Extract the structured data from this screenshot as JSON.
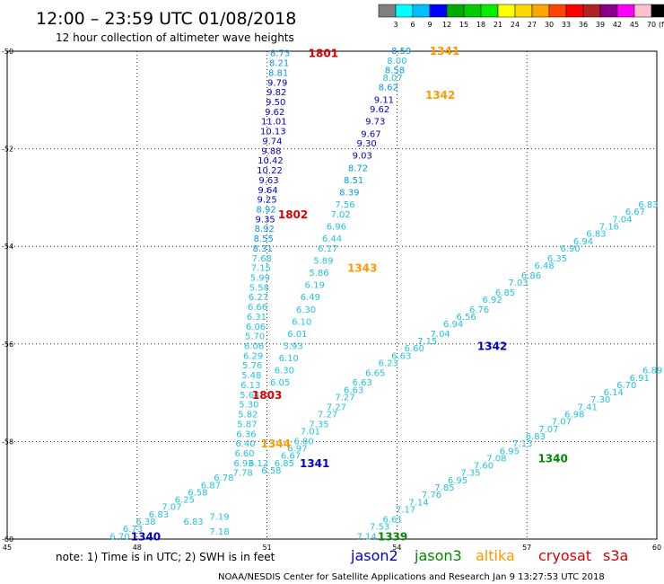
{
  "title": "12:00 – 23:59 UTC 01/08/2018",
  "subtitle": "12 hour collection of altimeter wave heights",
  "colorbar": {
    "labels": [
      "3",
      "6",
      "9",
      "12",
      "15",
      "18",
      "21",
      "24",
      "27",
      "30",
      "33",
      "36",
      "39",
      "42",
      "45",
      "70"
    ],
    "unit": "(ft)",
    "colors": [
      "#808080",
      "#00ffff",
      "#00bfff",
      "#0000ff",
      "#00aa00",
      "#00cc00",
      "#00ee00",
      "#ffff00",
      "#ffd700",
      "#ffa500",
      "#ff4500",
      "#ff0000",
      "#b22222",
      "#8b008b",
      "#ff00ff",
      "#ffc0cb",
      "#000000"
    ]
  },
  "note": "note:  1) Time is in UTC;  2) SWH is in feet",
  "satellites": [
    {
      "name": "jason2",
      "color": "#0000cc"
    },
    {
      "name": "jason3",
      "color": "#008800"
    },
    {
      "name": "altika",
      "color": "#ff9900"
    },
    {
      "name": "cryosat",
      "color": "#dd0000"
    },
    {
      "name": "s3a",
      "color": "#cc0000"
    }
  ],
  "footer": "NOAA/NESDIS Center for Satellite Applications and Research    Jan  9 13:27:53 UTC 2018",
  "chart_data": {
    "type": "scatter",
    "xlim": [
      45,
      60
    ],
    "ylim": [
      -60,
      -50
    ],
    "x_ticks": [
      45,
      48,
      51,
      54,
      57,
      60
    ],
    "y_ticks": [
      -50,
      -52,
      -54,
      -56,
      -58,
      -60
    ],
    "grid": true,
    "series": [
      {
        "name": "1801",
        "color": "#dd0000",
        "label_at": [
          52.3,
          -50.05
        ],
        "points": [
          {
            "x": 51.3,
            "y": -50.05,
            "v": "8.73"
          },
          {
            "x": 51.28,
            "y": -50.25,
            "v": "8.21"
          },
          {
            "x": 51.26,
            "y": -50.45,
            "v": "8.81"
          },
          {
            "x": 51.24,
            "y": -50.65,
            "v": "9.79"
          },
          {
            "x": 51.22,
            "y": -50.85,
            "v": "9.82"
          },
          {
            "x": 51.2,
            "y": -51.05,
            "v": "9.50"
          },
          {
            "x": 51.18,
            "y": -51.25,
            "v": "9.62"
          },
          {
            "x": 51.16,
            "y": -51.45,
            "v": "11.01"
          },
          {
            "x": 51.14,
            "y": -51.65,
            "v": "10.13"
          },
          {
            "x": 51.12,
            "y": -51.85,
            "v": "9.74"
          },
          {
            "x": 51.1,
            "y": -52.05,
            "v": "9.88"
          },
          {
            "x": 51.08,
            "y": -52.25,
            "v": "10.42"
          },
          {
            "x": 51.06,
            "y": -52.45,
            "v": "10.22"
          },
          {
            "x": 51.04,
            "y": -52.65,
            "v": "9.63"
          },
          {
            "x": 51.02,
            "y": -52.85,
            "v": "9.64"
          },
          {
            "x": 51.0,
            "y": -53.05,
            "v": "9.25"
          },
          {
            "x": 50.98,
            "y": -53.25,
            "v": "8.92"
          },
          {
            "x": 50.96,
            "y": -53.45,
            "v": "9.35"
          },
          {
            "x": 50.94,
            "y": -53.65,
            "v": "8.92"
          },
          {
            "x": 50.92,
            "y": -53.85,
            "v": "8.55"
          },
          {
            "x": 50.9,
            "y": -54.05,
            "v": "8.31"
          },
          {
            "x": 50.88,
            "y": -54.25,
            "v": "7.68"
          },
          {
            "x": 50.86,
            "y": -54.45,
            "v": "7.15"
          },
          {
            "x": 50.84,
            "y": -54.65,
            "v": "5.99"
          },
          {
            "x": 50.82,
            "y": -54.85,
            "v": "5.58"
          },
          {
            "x": 50.8,
            "y": -55.05,
            "v": "6.27"
          },
          {
            "x": 50.78,
            "y": -55.25,
            "v": "6.66"
          },
          {
            "x": 50.76,
            "y": -55.45,
            "v": "6.31"
          },
          {
            "x": 50.74,
            "y": -55.65,
            "v": "6.06"
          },
          {
            "x": 50.72,
            "y": -55.85,
            "v": "5.70"
          },
          {
            "x": 50.7,
            "y": -56.05,
            "v": "6.06"
          },
          {
            "x": 50.68,
            "y": -56.25,
            "v": "6.29"
          },
          {
            "x": 50.66,
            "y": -56.45,
            "v": "5.76"
          },
          {
            "x": 50.64,
            "y": -56.65,
            "v": "5.48"
          },
          {
            "x": 50.62,
            "y": -56.85,
            "v": "6.13"
          },
          {
            "x": 50.6,
            "y": -57.05,
            "v": "5.64"
          },
          {
            "x": 50.58,
            "y": -57.25,
            "v": "5.30"
          },
          {
            "x": 50.56,
            "y": -57.45,
            "v": "5.82"
          },
          {
            "x": 50.54,
            "y": -57.65,
            "v": "5.87"
          },
          {
            "x": 50.52,
            "y": -57.85,
            "v": "6.36"
          },
          {
            "x": 50.5,
            "y": -58.05,
            "v": "6.40"
          },
          {
            "x": 50.48,
            "y": -58.25,
            "v": "6.60"
          },
          {
            "x": 50.46,
            "y": -58.45,
            "v": "6.93"
          },
          {
            "x": 50.44,
            "y": -58.65,
            "v": "7.78"
          }
        ]
      },
      {
        "name": "1802",
        "color": "#dd0000",
        "label_at": [
          51.6,
          -53.35
        ],
        "points": [
          {
            "x": 53.9,
            "y": -50.55,
            "v": "8.07"
          },
          {
            "x": 53.8,
            "y": -50.75,
            "v": "8.62"
          },
          {
            "x": 53.7,
            "y": -51.0,
            "v": "9.11"
          },
          {
            "x": 53.6,
            "y": -51.2,
            "v": "9.62"
          },
          {
            "x": 53.5,
            "y": -51.45,
            "v": "9.73"
          },
          {
            "x": 53.4,
            "y": -51.7,
            "v": "9.67"
          },
          {
            "x": 53.3,
            "y": -51.9,
            "v": "9.30"
          },
          {
            "x": 53.2,
            "y": -52.15,
            "v": "9.03"
          },
          {
            "x": 53.1,
            "y": -52.4,
            "v": "8.72"
          },
          {
            "x": 53.0,
            "y": -52.65,
            "v": "8.51"
          },
          {
            "x": 52.9,
            "y": -52.9,
            "v": "8.39"
          },
          {
            "x": 52.8,
            "y": -53.15,
            "v": "7.56"
          },
          {
            "x": 52.7,
            "y": -53.35,
            "v": "7.02"
          },
          {
            "x": 52.6,
            "y": -53.6,
            "v": "6.96"
          },
          {
            "x": 52.5,
            "y": -53.85,
            "v": "6.44"
          },
          {
            "x": 52.4,
            "y": -54.05,
            "v": "6.17"
          },
          {
            "x": 52.3,
            "y": -54.3,
            "v": "5.89"
          },
          {
            "x": 52.2,
            "y": -54.55,
            "v": "5.86"
          },
          {
            "x": 52.1,
            "y": -54.8,
            "v": "6.19"
          },
          {
            "x": 52.0,
            "y": -55.05,
            "v": "6.49"
          },
          {
            "x": 51.9,
            "y": -55.3,
            "v": "6.30"
          },
          {
            "x": 51.8,
            "y": -55.55,
            "v": "6.10"
          },
          {
            "x": 51.7,
            "y": -55.8,
            "v": "6.01"
          },
          {
            "x": 51.6,
            "y": -56.05,
            "v": "5.93"
          },
          {
            "x": 51.5,
            "y": -56.3,
            "v": "6.10"
          },
          {
            "x": 51.4,
            "y": -56.55,
            "v": "6.30"
          },
          {
            "x": 51.3,
            "y": -56.8,
            "v": "6.05"
          }
        ]
      },
      {
        "name": "1803",
        "color": "#dd0000",
        "label_at": [
          51.0,
          -57.05
        ],
        "points": []
      },
      {
        "name": "1341",
        "color": "#ff9900",
        "label_at": [
          55.1,
          -50.0
        ],
        "points": [
          {
            "x": 54.1,
            "y": -50.0,
            "v": "8.59"
          },
          {
            "x": 54.0,
            "y": -50.2,
            "v": "8.00"
          },
          {
            "x": 53.95,
            "y": -50.4,
            "v": "8.58"
          }
        ]
      },
      {
        "name": "1342",
        "color": "#ff9900",
        "label_at": [
          55.0,
          -50.9
        ],
        "points": []
      },
      {
        "name": "1343",
        "color": "#ff9900",
        "label_at": [
          53.2,
          -54.45
        ],
        "points": []
      },
      {
        "name": "1344",
        "color": "#ff9900",
        "label_at": [
          51.2,
          -58.05
        ],
        "points": []
      },
      {
        "name": "1341",
        "color": "#0000cc",
        "label_at": [
          52.1,
          -58.45
        ],
        "points": [
          {
            "x": 51.4,
            "y": -58.45,
            "v": "6.85"
          },
          {
            "x": 51.55,
            "y": -58.3,
            "v": "6.67"
          },
          {
            "x": 51.7,
            "y": -58.15,
            "v": "6.97"
          },
          {
            "x": 51.85,
            "y": -58.0,
            "v": "6.80"
          },
          {
            "x": 52.0,
            "y": -57.8,
            "v": "7.01"
          },
          {
            "x": 52.2,
            "y": -57.65,
            "v": "7.35"
          },
          {
            "x": 52.4,
            "y": -57.45,
            "v": "7.27"
          },
          {
            "x": 52.6,
            "y": -57.3,
            "v": "7.27"
          },
          {
            "x": 52.8,
            "y": -57.1,
            "v": "7.27"
          },
          {
            "x": 53.0,
            "y": -56.95,
            "v": "6.63"
          },
          {
            "x": 53.2,
            "y": -56.8,
            "v": "6.63"
          },
          {
            "x": 53.5,
            "y": -56.6,
            "v": "6.65"
          },
          {
            "x": 53.8,
            "y": -56.4,
            "v": "6.23"
          },
          {
            "x": 54.1,
            "y": -56.25,
            "v": "6.63"
          },
          {
            "x": 54.4,
            "y": -56.1,
            "v": "6.60"
          },
          {
            "x": 54.7,
            "y": -55.95,
            "v": "7.15"
          },
          {
            "x": 55.0,
            "y": -55.8,
            "v": "7.04"
          },
          {
            "x": 55.3,
            "y": -55.6,
            "v": "6.94"
          },
          {
            "x": 55.6,
            "y": -55.45,
            "v": "6.56"
          },
          {
            "x": 55.9,
            "y": -55.3,
            "v": "6.76"
          },
          {
            "x": 56.2,
            "y": -55.1,
            "v": "6.92"
          },
          {
            "x": 56.5,
            "y": -54.95,
            "v": "6.85"
          },
          {
            "x": 56.8,
            "y": -54.75,
            "v": "7.03"
          },
          {
            "x": 57.1,
            "y": -54.6,
            "v": "6.86"
          },
          {
            "x": 57.4,
            "y": -54.4,
            "v": "6.48"
          },
          {
            "x": 57.7,
            "y": -54.25,
            "v": "6.35"
          },
          {
            "x": 58.0,
            "y": -54.05,
            "v": "6.90"
          },
          {
            "x": 58.3,
            "y": -53.9,
            "v": "6.94"
          },
          {
            "x": 58.6,
            "y": -53.75,
            "v": "6.83"
          },
          {
            "x": 58.9,
            "y": -53.6,
            "v": "7.16"
          },
          {
            "x": 59.2,
            "y": -53.45,
            "v": "7.04"
          },
          {
            "x": 59.5,
            "y": -53.3,
            "v": "6.67"
          },
          {
            "x": 59.8,
            "y": -53.15,
            "v": "6.83"
          }
        ]
      },
      {
        "name": "1342",
        "color": "#0000cc",
        "label_at": [
          56.2,
          -56.05
        ],
        "points": []
      },
      {
        "name": "1340",
        "color": "#0000cc",
        "label_at": [
          48.2,
          -59.95
        ],
        "points": [
          {
            "x": 47.6,
            "y": -59.95,
            "v": "6.70"
          },
          {
            "x": 47.9,
            "y": -59.8,
            "v": "6.73"
          },
          {
            "x": 48.2,
            "y": -59.65,
            "v": "6.38"
          },
          {
            "x": 48.5,
            "y": -59.5,
            "v": "6.83"
          },
          {
            "x": 48.8,
            "y": -59.35,
            "v": "7.07"
          },
          {
            "x": 49.1,
            "y": -59.2,
            "v": "6.25"
          },
          {
            "x": 49.4,
            "y": -59.05,
            "v": "6.58"
          },
          {
            "x": 49.7,
            "y": -58.9,
            "v": "6.87"
          },
          {
            "x": 50.0,
            "y": -58.75,
            "v": "6.78"
          },
          {
            "x": 49.3,
            "y": -59.65,
            "v": "6.83"
          },
          {
            "x": 49.9,
            "y": -59.55,
            "v": "7.19"
          },
          {
            "x": 49.9,
            "y": -59.85,
            "v": "7.18"
          },
          {
            "x": 50.8,
            "y": -58.45,
            "v": "6.12"
          },
          {
            "x": 51.1,
            "y": -58.6,
            "v": "6.58"
          }
        ]
      },
      {
        "name": "1340",
        "color": "#008800",
        "label_at": [
          57.6,
          -58.35
        ],
        "points": [
          {
            "x": 53.3,
            "y": -59.95,
            "v": "7.14"
          },
          {
            "x": 53.6,
            "y": -59.75,
            "v": "7.53"
          },
          {
            "x": 53.9,
            "y": -59.6,
            "v": "6.61"
          },
          {
            "x": 54.2,
            "y": -59.4,
            "v": "7.17"
          },
          {
            "x": 54.5,
            "y": -59.25,
            "v": "7.14"
          },
          {
            "x": 54.8,
            "y": -59.1,
            "v": "7.76"
          },
          {
            "x": 55.1,
            "y": -58.95,
            "v": "7.85"
          },
          {
            "x": 55.4,
            "y": -58.8,
            "v": "6.95"
          },
          {
            "x": 55.7,
            "y": -58.65,
            "v": "7.35"
          },
          {
            "x": 56.0,
            "y": -58.5,
            "v": "7.60"
          },
          {
            "x": 56.3,
            "y": -58.35,
            "v": "7.08"
          },
          {
            "x": 56.6,
            "y": -58.2,
            "v": "6.95"
          },
          {
            "x": 56.9,
            "y": -58.05,
            "v": "7.13"
          },
          {
            "x": 57.2,
            "y": -57.9,
            "v": "6.83"
          },
          {
            "x": 57.5,
            "y": -57.75,
            "v": "7.07"
          },
          {
            "x": 57.8,
            "y": -57.6,
            "v": "7.07"
          },
          {
            "x": 58.1,
            "y": -57.45,
            "v": "6.98"
          },
          {
            "x": 58.4,
            "y": -57.3,
            "v": "7.41"
          },
          {
            "x": 58.7,
            "y": -57.15,
            "v": "7.30"
          },
          {
            "x": 59.0,
            "y": -57.0,
            "v": "6.14"
          },
          {
            "x": 59.3,
            "y": -56.85,
            "v": "6.70"
          },
          {
            "x": 59.6,
            "y": -56.7,
            "v": "6.91"
          },
          {
            "x": 59.9,
            "y": -56.55,
            "v": "6.89"
          }
        ]
      },
      {
        "name": "1339",
        "color": "#008800",
        "label_at": [
          53.9,
          -59.95
        ],
        "points": []
      }
    ]
  }
}
